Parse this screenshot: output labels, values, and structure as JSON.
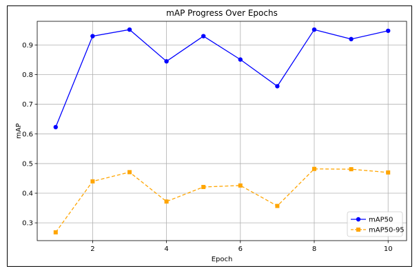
{
  "chart_data": {
    "type": "line",
    "title": "mAP Progress Over Epochs",
    "xlabel": "Epoch",
    "ylabel": "mAP",
    "x": [
      1,
      2,
      3,
      4,
      5,
      6,
      7,
      8,
      9,
      10
    ],
    "xlim": [
      0.5,
      10.5
    ],
    "ylim": [
      0.24,
      0.98
    ],
    "xticks": [
      2,
      4,
      6,
      8,
      10
    ],
    "yticks": [
      0.3,
      0.4,
      0.5,
      0.6,
      0.7,
      0.8,
      0.9
    ],
    "grid": true,
    "legend_position": "bottom-right",
    "series": [
      {
        "name": "mAP50",
        "color": "#0000ff",
        "line_style": "solid",
        "marker": "circle",
        "values": [
          0.623,
          0.93,
          0.952,
          0.845,
          0.93,
          0.851,
          0.761,
          0.952,
          0.92,
          0.948
        ]
      },
      {
        "name": "mAP50-95",
        "color": "#ffa500",
        "line_style": "dashed",
        "marker": "square",
        "values": [
          0.268,
          0.44,
          0.471,
          0.372,
          0.421,
          0.426,
          0.357,
          0.482,
          0.481,
          0.47
        ]
      }
    ]
  }
}
